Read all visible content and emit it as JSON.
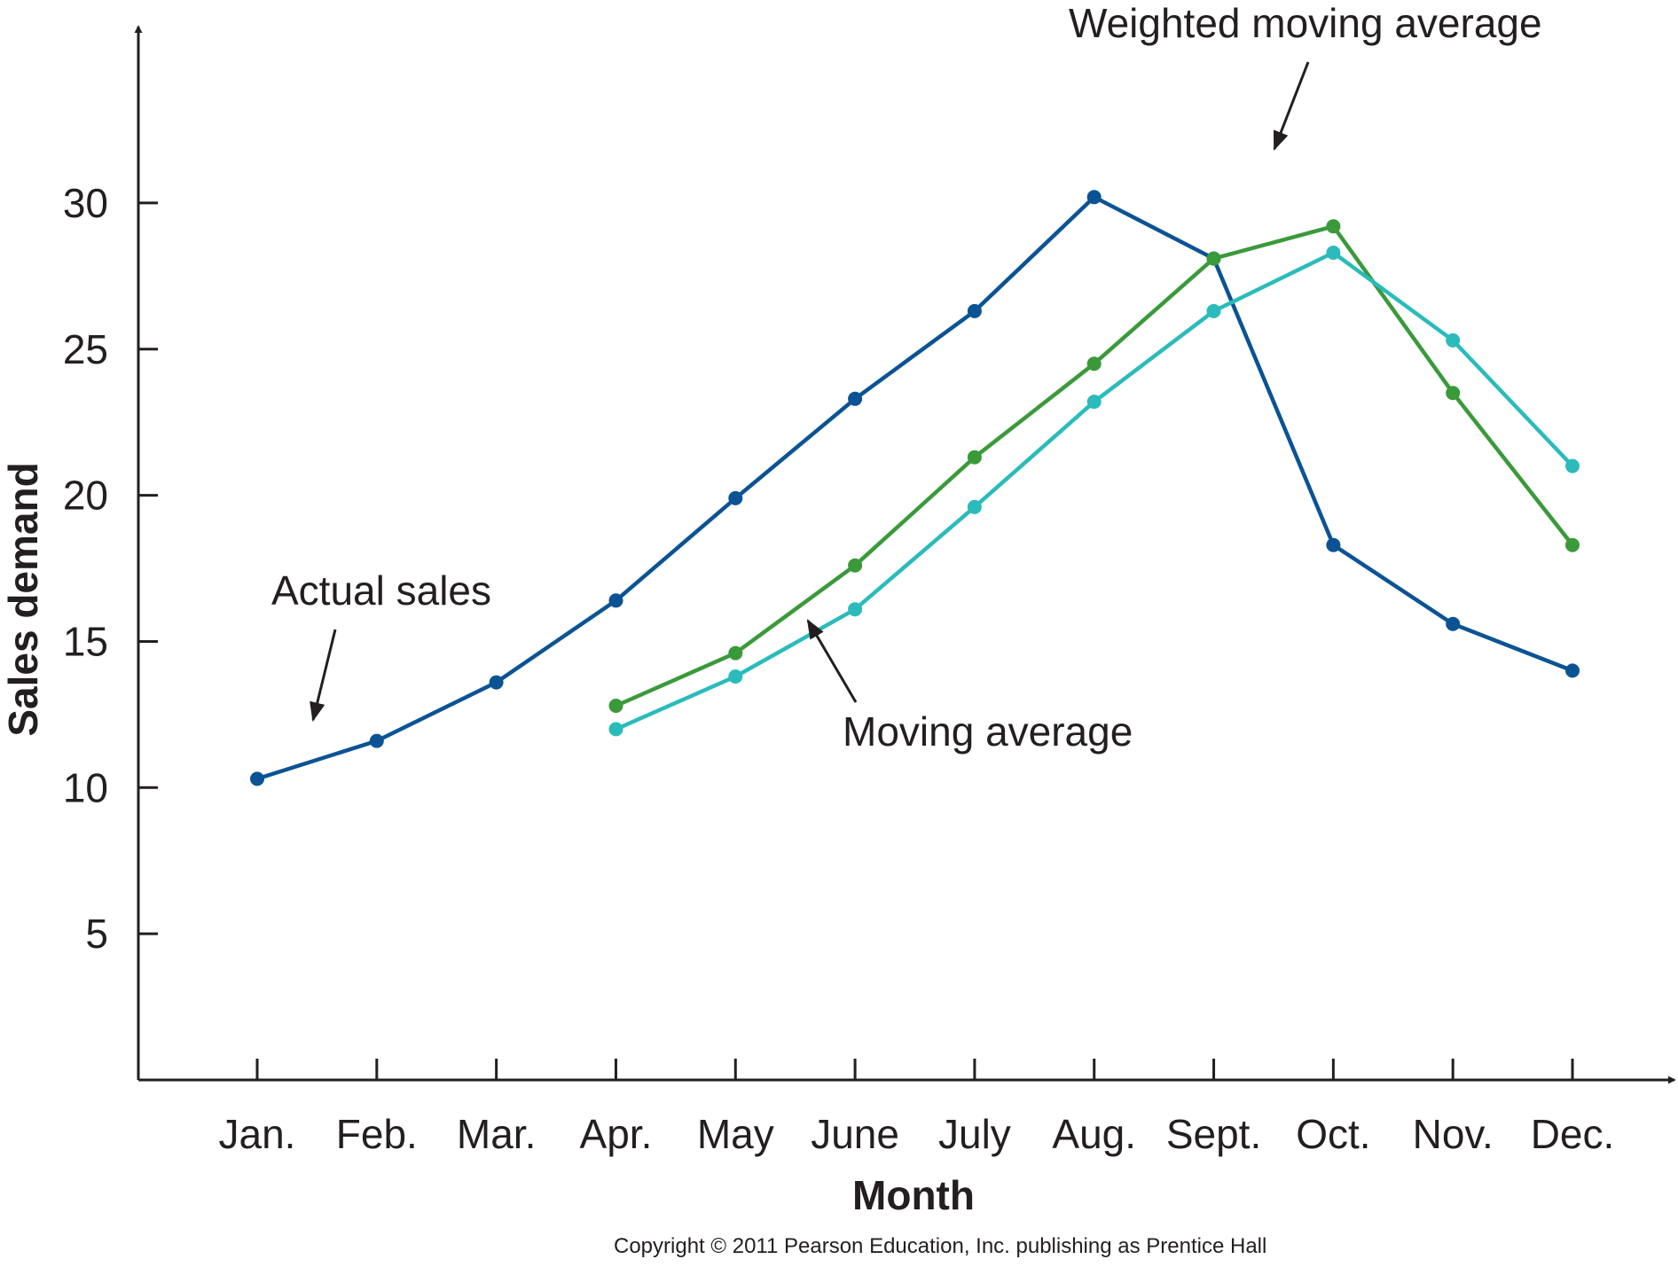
{
  "chart_data": {
    "type": "line",
    "xlabel": "Month",
    "ylabel": "Sales demand",
    "categories": [
      "Jan.",
      "Feb.",
      "Mar.",
      "Apr.",
      "May",
      "June",
      "July",
      "Aug.",
      "Sept.",
      "Oct.",
      "Nov.",
      "Dec."
    ],
    "yticks": [
      5,
      10,
      15,
      20,
      25,
      30
    ],
    "ylim": [
      0,
      33
    ],
    "grid": false,
    "legend": "none",
    "series": [
      {
        "name": "Actual sales",
        "color": "#0b5394",
        "values": [
          10.3,
          11.6,
          13.6,
          16.4,
          19.9,
          23.3,
          26.3,
          30.2,
          28.1,
          18.3,
          15.6,
          14.0
        ]
      },
      {
        "name": "Weighted moving average",
        "color": "#3a9a3a",
        "values": [
          null,
          null,
          null,
          12.8,
          14.6,
          17.6,
          21.3,
          24.5,
          28.1,
          29.2,
          23.5,
          18.3
        ]
      },
      {
        "name": "Moving average",
        "color": "#2bbbbb",
        "values": [
          null,
          null,
          null,
          12.0,
          13.8,
          16.1,
          19.6,
          23.2,
          26.3,
          28.3,
          25.3,
          21.0
        ]
      }
    ],
    "annotations": [
      {
        "text": "Actual sales",
        "series": "Actual sales"
      },
      {
        "text": "Weighted moving average",
        "series": "Weighted moving average"
      },
      {
        "text": "Moving average",
        "series": "Moving average"
      }
    ]
  },
  "footer": {
    "copyright": "Copyright © 2011 Pearson Education, Inc. publishing as Prentice Hall"
  }
}
